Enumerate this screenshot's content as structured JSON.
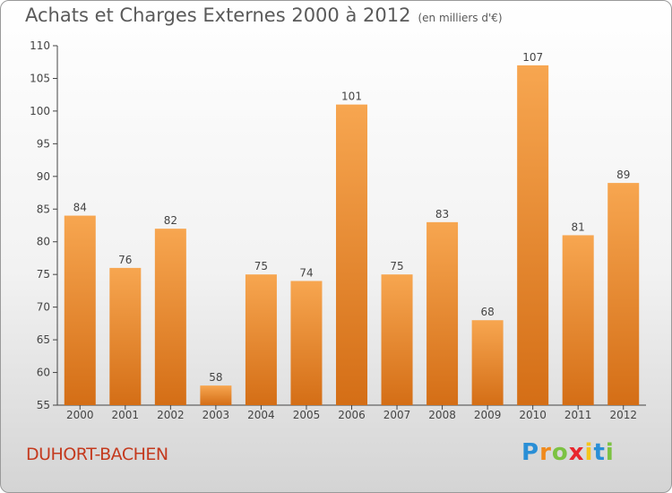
{
  "title": "Achats et Charges Externes 2000 à 2012",
  "subtitle": "(en milliers d'€)",
  "commune": "DUHORT-BACHEN",
  "logo": {
    "letters": [
      "P",
      "r",
      "o",
      "x",
      "i",
      "t",
      "i"
    ],
    "colors": [
      "#2a8fd6",
      "#f08a1c",
      "#7cc242",
      "#e8262d",
      "#f5c51b",
      "#2a8fd6",
      "#7cc242"
    ]
  },
  "chart_data": {
    "type": "bar",
    "categories": [
      "2000",
      "2001",
      "2002",
      "2003",
      "2004",
      "2005",
      "2006",
      "2007",
      "2008",
      "2009",
      "2010",
      "2011",
      "2012"
    ],
    "values": [
      84,
      76,
      82,
      58,
      75,
      74,
      101,
      75,
      83,
      68,
      107,
      81,
      89
    ],
    "ylim": [
      55,
      110
    ],
    "yticks": [
      55,
      60,
      65,
      70,
      75,
      80,
      85,
      90,
      95,
      100,
      105,
      110
    ],
    "grid": false,
    "bar_colors": {
      "light": "#f7a650",
      "dark": "#d46e16"
    }
  }
}
